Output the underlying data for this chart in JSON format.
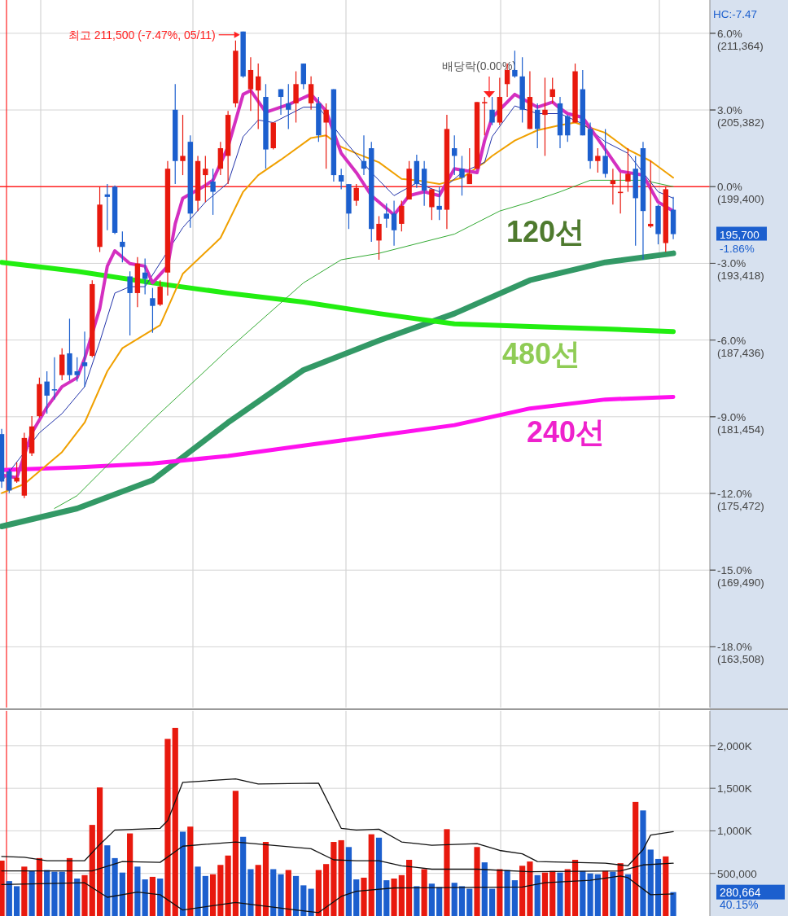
{
  "chart_data": [
    {
      "type": "candlestick",
      "categories": [
        null,
        null,
        null,
        null,
        null,
        null,
        null,
        null,
        null,
        null,
        null,
        null,
        null,
        null,
        null,
        null,
        null,
        null,
        null,
        null,
        null,
        null,
        null,
        null,
        null,
        null,
        null,
        null,
        null,
        null,
        null,
        null,
        null,
        null,
        null,
        null,
        null,
        null,
        null,
        null,
        null,
        null,
        null,
        null,
        null,
        null,
        null,
        null,
        null,
        null,
        null,
        null,
        null,
        null,
        null,
        null,
        null,
        null,
        null,
        null,
        null,
        null,
        null,
        null,
        null,
        null,
        null,
        null,
        null,
        null,
        null,
        null,
        null,
        null,
        null,
        null,
        null,
        null,
        null,
        null,
        null,
        null,
        null,
        null,
        null,
        null,
        null,
        null,
        null,
        null
      ],
      "ohlc": [
        [
          180100,
          180500,
          175900,
          176400
        ],
        [
          177200,
          177400,
          175500,
          175700
        ],
        [
          176400,
          177900,
          176300,
          176700
        ],
        [
          175300,
          180200,
          175100,
          179800
        ],
        [
          178600,
          181500,
          178400,
          180700
        ],
        [
          181500,
          184500,
          181400,
          184000
        ],
        [
          184200,
          185000,
          181700,
          183100
        ],
        [
          183600,
          186100,
          182800,
          183500
        ],
        [
          184700,
          186800,
          184300,
          186300
        ],
        [
          186400,
          189100,
          184300,
          184700
        ],
        [
          185000,
          186100,
          184200,
          184700
        ],
        [
          185700,
          188100,
          183800,
          185400
        ],
        [
          186200,
          192100,
          186100,
          191800
        ],
        [
          194700,
          199400,
          194300,
          198000
        ],
        [
          198800,
          199600,
          196000,
          198600
        ],
        [
          199400,
          199500,
          195700,
          195800
        ],
        [
          195100,
          195900,
          193500,
          194700
        ],
        [
          192400,
          192800,
          187800,
          191100
        ],
        [
          191100,
          193900,
          190000,
          193400
        ],
        [
          192700,
          193800,
          191000,
          192200
        ],
        [
          190700,
          191500,
          188000,
          190100
        ],
        [
          190200,
          192100,
          190100,
          191600
        ],
        [
          192700,
          201400,
          190900,
          200800
        ],
        [
          205400,
          207400,
          199600,
          201400
        ],
        [
          201400,
          205000,
          200300,
          201800
        ],
        [
          202900,
          203400,
          196200,
          197300
        ],
        [
          198300,
          201800,
          197500,
          201400
        ],
        [
          200300,
          201800,
          198200,
          200800
        ],
        [
          199800,
          200800,
          197200,
          199000
        ],
        [
          200800,
          202900,
          200300,
          202400
        ],
        [
          201800,
          205300,
          199600,
          205000
        ],
        [
          205900,
          210800,
          205600,
          210000
        ],
        [
          211500,
          211500,
          207900,
          208000
        ],
        [
          207000,
          209500,
          205300,
          208500
        ],
        [
          206900,
          209000,
          203900,
          208000
        ],
        [
          206400,
          207400,
          200800,
          202300
        ],
        [
          202400,
          204400,
          202300,
          204400
        ],
        [
          207000,
          207000,
          205000,
          206400
        ],
        [
          205900,
          207400,
          203900,
          205400
        ],
        [
          205900,
          208400,
          204400,
          207400
        ],
        [
          209000,
          209000,
          207000,
          207400
        ],
        [
          205900,
          208000,
          205400,
          207400
        ],
        [
          205900,
          206400,
          202900,
          203400
        ],
        [
          204400,
          205900,
          200800,
          205400
        ],
        [
          207000,
          207000,
          199800,
          200300
        ],
        [
          200300,
          200800,
          199200,
          199800
        ],
        [
          199600,
          199600,
          196100,
          197300
        ],
        [
          198300,
          199600,
          197900,
          199300
        ],
        [
          201400,
          203400,
          200300,
          200800
        ],
        [
          202400,
          202900,
          195100,
          196100
        ],
        [
          195200,
          197100,
          193700,
          196500
        ],
        [
          197300,
          198100,
          196200,
          196900
        ],
        [
          197300,
          198300,
          194800,
          196000
        ],
        [
          196500,
          198300,
          195900,
          197900
        ],
        [
          198400,
          201400,
          198400,
          200800
        ],
        [
          201400,
          201900,
          199300,
          199600
        ],
        [
          200800,
          201400,
          197900,
          199100
        ],
        [
          197800,
          199200,
          196800,
          199200
        ],
        [
          197900,
          199400,
          196800,
          197600
        ],
        [
          197600,
          205000,
          196100,
          203900
        ],
        [
          202400,
          203400,
          200300,
          201800
        ],
        [
          200800,
          201800,
          198700,
          200100
        ],
        [
          199600,
          202400,
          199600,
          200400
        ],
        [
          200800,
          206000,
          200800,
          206000
        ],
        [
          205900,
          206400,
          203400,
          206000
        ],
        [
          205400,
          206400,
          204200,
          204400
        ],
        [
          204400,
          207900,
          204200,
          206400
        ],
        [
          207400,
          209000,
          206400,
          208500
        ],
        [
          208500,
          210000,
          207900,
          208000
        ],
        [
          208000,
          209500,
          204400,
          205400
        ],
        [
          203900,
          208400,
          203900,
          206400
        ],
        [
          205400,
          205900,
          202400,
          203900
        ],
        [
          205000,
          207900,
          201800,
          205400
        ],
        [
          206400,
          207900,
          205900,
          207000
        ],
        [
          205900,
          206400,
          202400,
          203400
        ],
        [
          204900,
          205000,
          202900,
          203400
        ],
        [
          204400,
          209000,
          204400,
          208400
        ],
        [
          207000,
          208500,
          203400,
          203400
        ],
        [
          203900,
          204400,
          200800,
          201400
        ],
        [
          201400,
          202400,
          200500,
          201800
        ],
        [
          201800,
          203900,
          200100,
          200400
        ],
        [
          199600,
          200800,
          198000,
          199900
        ],
        [
          198900,
          200500,
          197300,
          199000
        ],
        [
          199800,
          202400,
          199000,
          200400
        ],
        [
          200800,
          201800,
          194800,
          198500
        ],
        [
          202400,
          202900,
          193700,
          197500
        ],
        [
          196300,
          201400,
          196200,
          196500
        ],
        [
          197900,
          198000,
          194900,
          195700
        ],
        [
          195000,
          199400,
          194300,
          199200
        ],
        [
          197600,
          198600,
          195300,
          195700
        ]
      ],
      "series": [
        {
          "type": "line",
          "name": "120선",
          "color": "#339966",
          "values": [
            172900,
            null,
            null,
            null,
            null,
            null,
            null,
            null,
            null,
            null,
            174300,
            null,
            null,
            null,
            null,
            null,
            null,
            null,
            null,
            null,
            176500,
            null,
            null,
            null,
            null,
            null,
            null,
            null,
            null,
            null,
            181000,
            null,
            null,
            null,
            null,
            null,
            null,
            null,
            null,
            null,
            185100,
            null,
            null,
            null,
            null,
            null,
            null,
            null,
            null,
            null,
            187400,
            null,
            null,
            null,
            null,
            null,
            null,
            null,
            null,
            null,
            189500,
            null,
            null,
            null,
            null,
            null,
            null,
            null,
            null,
            null,
            192100,
            null,
            null,
            null,
            null,
            null,
            null,
            null,
            null,
            null,
            193500,
            null,
            null,
            null,
            null,
            null,
            null,
            null,
            null,
            194200
          ]
        },
        {
          "type": "line",
          "name": "480선",
          "color": "#22ee11",
          "values": [
            193500,
            null,
            null,
            null,
            null,
            null,
            null,
            null,
            null,
            null,
            192800,
            null,
            null,
            null,
            null,
            null,
            null,
            null,
            null,
            null,
            191900,
            null,
            null,
            null,
            null,
            null,
            null,
            null,
            null,
            null,
            191100,
            null,
            null,
            null,
            null,
            null,
            null,
            null,
            null,
            null,
            190400,
            null,
            null,
            null,
            null,
            null,
            null,
            null,
            null,
            null,
            189500,
            null,
            null,
            null,
            null,
            null,
            null,
            null,
            null,
            null,
            188700,
            null,
            null,
            null,
            null,
            null,
            null,
            null,
            null,
            null,
            188500,
            null,
            null,
            null,
            null,
            null,
            null,
            null,
            null,
            null,
            188300,
            null,
            null,
            null,
            null,
            null,
            null,
            null,
            null,
            188100
          ]
        },
        {
          "type": "line",
          "name": "240선",
          "color": "#ff11ee",
          "values": [
            177300,
            null,
            null,
            null,
            null,
            null,
            null,
            null,
            null,
            null,
            177500,
            null,
            null,
            null,
            null,
            null,
            null,
            null,
            null,
            null,
            177800,
            null,
            null,
            null,
            null,
            null,
            null,
            null,
            null,
            null,
            178400,
            null,
            null,
            null,
            null,
            null,
            null,
            null,
            null,
            null,
            179200,
            null,
            null,
            null,
            null,
            null,
            null,
            null,
            null,
            null,
            180000,
            null,
            null,
            null,
            null,
            null,
            null,
            null,
            null,
            null,
            180800,
            null,
            null,
            null,
            null,
            null,
            null,
            null,
            null,
            null,
            182100,
            null,
            null,
            null,
            null,
            null,
            null,
            null,
            null,
            null,
            182800,
            null,
            null,
            null,
            null,
            null,
            null,
            null,
            null,
            183000
          ]
        },
        {
          "type": "line",
          "color": "#33aa33",
          "values": [
            null,
            null,
            null,
            null,
            null,
            null,
            null,
            174300,
            null,
            null,
            175300,
            null,
            null,
            null,
            null,
            null,
            null,
            null,
            null,
            null,
            181200,
            null,
            null,
            null,
            null,
            null,
            null,
            null,
            null,
            null,
            186700,
            null,
            null,
            null,
            null,
            null,
            null,
            null,
            null,
            null,
            191900,
            null,
            null,
            null,
            null,
            193700,
            null,
            null,
            null,
            null,
            194200,
            null,
            null,
            null,
            null,
            null,
            null,
            null,
            null,
            null,
            195700,
            null,
            null,
            null,
            null,
            null,
            197500,
            null,
            null,
            null,
            198200,
            null,
            null,
            null,
            199000,
            null,
            null,
            null,
            199900,
            null,
            null,
            null,
            null,
            null,
            null,
            199900,
            null,
            null,
            null,
            199400
          ]
        },
        {
          "type": "line",
          "color": "#f0a000",
          "values": [
            175500,
            null,
            null,
            176200,
            null,
            null,
            null,
            null,
            178700,
            null,
            null,
            181000,
            null,
            null,
            185000,
            null,
            186800,
            null,
            null,
            null,
            null,
            188600,
            null,
            null,
            192600,
            null,
            null,
            null,
            null,
            195400,
            null,
            null,
            199000,
            null,
            200300,
            null,
            null,
            201500,
            null,
            null,
            null,
            203200,
            null,
            203400,
            null,
            202500,
            null,
            202000,
            null,
            null,
            201300,
            null,
            null,
            200000,
            null,
            199900,
            null,
            null,
            199600,
            null,
            null,
            200100,
            null,
            null,
            201300,
            201800,
            null,
            null,
            203000,
            null,
            null,
            203800,
            null,
            null,
            204200,
            null,
            204400,
            null,
            null,
            null,
            203600,
            null,
            null,
            202300,
            null,
            null,
            201400,
            null,
            null,
            200100
          ]
        },
        {
          "type": "line",
          "color": "#2233aa",
          "values": [
            176400,
            null,
            null,
            null,
            null,
            180200,
            null,
            null,
            181700,
            null,
            null,
            183800,
            null,
            187300,
            null,
            191100,
            null,
            191600,
            null,
            191600,
            null,
            null,
            null,
            null,
            196200,
            null,
            null,
            198200,
            null,
            null,
            199700,
            null,
            203300,
            null,
            204600,
            null,
            204400,
            null,
            null,
            null,
            205600,
            null,
            205600,
            null,
            null,
            203300,
            null,
            null,
            null,
            200500,
            null,
            null,
            198700,
            null,
            null,
            199700,
            null,
            null,
            199000,
            null,
            null,
            200500,
            null,
            null,
            201300,
            203300,
            null,
            null,
            205700,
            null,
            null,
            205100,
            null,
            null,
            205100,
            null,
            null,
            204300,
            null,
            null,
            202900,
            null,
            null,
            202000,
            null,
            null,
            null,
            199000,
            null,
            198500
          ]
        },
        {
          "type": "line",
          "color": "#d42fc0",
          "values": [
            176900,
            null,
            176700,
            null,
            180200,
            null,
            182200,
            null,
            183800,
            null,
            184500,
            186000,
            null,
            189900,
            193200,
            194400,
            null,
            193400,
            null,
            193200,
            191900,
            null,
            193200,
            196500,
            198500,
            null,
            null,
            199500,
            199900,
            null,
            202500,
            null,
            206600,
            206900,
            null,
            205200,
            null,
            null,
            205800,
            null,
            null,
            206600,
            null,
            205300,
            null,
            202000,
            null,
            200500,
            null,
            198700,
            null,
            null,
            197200,
            null,
            198700,
            null,
            199000,
            null,
            198700,
            null,
            200800,
            null,
            null,
            200500,
            203000,
            204800,
            null,
            null,
            206600,
            null,
            null,
            205600,
            null,
            206000,
            205500,
            205100,
            null,
            204800,
            null,
            null,
            202300,
            null,
            200600,
            null,
            null,
            200300,
            null,
            198200,
            null,
            197500
          ]
        }
      ],
      "ylim": [
        158770,
        213960
      ],
      "yticks": [
        {
          "value": 211364,
          "label": "(211,364)"
        },
        {
          "value": 205382,
          "label": "(205,382)"
        },
        {
          "value": 199400,
          "label": "(199,400)"
        },
        {
          "value": 193418,
          "label": "(193,418)"
        },
        {
          "value": 187436,
          "label": "(187,436)"
        },
        {
          "value": 181454,
          "label": "(181,454)"
        },
        {
          "value": 175472,
          "label": "(175,472)"
        },
        {
          "value": 169490,
          "label": "(169,490)"
        },
        {
          "value": 163508,
          "label": "(163,508)"
        }
      ],
      "y2lim": [
        -20.376,
        7.302
      ],
      "y2ticks": [
        {
          "value": 6,
          "label": "6.0%"
        },
        {
          "value": 3,
          "label": "3.0%"
        },
        {
          "value": 0,
          "label": "0.0%"
        },
        {
          "value": -3,
          "label": "-3.0%"
        },
        {
          "value": -6,
          "label": "-6.0%"
        },
        {
          "value": -9,
          "label": "-9.0%"
        },
        {
          "value": -12,
          "label": "-12.0%"
        },
        {
          "value": -15,
          "label": "-15.0%"
        },
        {
          "value": -18,
          "label": "-18.0%"
        }
      ],
      "grid": "y",
      "ref_lines": [
        {
          "axis": "y",
          "value": 199400,
          "color": "#ff2020"
        }
      ],
      "annotations": [
        "최고 211,500 (-7.47%, 05/11)",
        "배당락(0.00%)",
        "195,700",
        "-1.86%",
        "HC:-7.47"
      ]
    },
    {
      "type": "bar",
      "categories": [
        null,
        null,
        null,
        null,
        null,
        null,
        null,
        null,
        null,
        null,
        null,
        null,
        null,
        null,
        null,
        null,
        null,
        null,
        null,
        null,
        null,
        null,
        null,
        null,
        null,
        null,
        null,
        null,
        null,
        null,
        null,
        null,
        null,
        null,
        null,
        null,
        null,
        null,
        null,
        null,
        null,
        null,
        null,
        null,
        null,
        null,
        null,
        null,
        null,
        null,
        null,
        null,
        null,
        null,
        null,
        null,
        null,
        null,
        null,
        null,
        null,
        null,
        null,
        null,
        null,
        null,
        null,
        null,
        null,
        null,
        null,
        null,
        null,
        null,
        null,
        null,
        null,
        null,
        null,
        null,
        null,
        null,
        null,
        null,
        null,
        null,
        null,
        null,
        null,
        null
      ],
      "series": [
        {
          "values": [
            650000,
            410000,
            350000,
            580000,
            530000,
            680000,
            540000,
            520000,
            520000,
            680000,
            440000,
            480000,
            1070000,
            1510000,
            830000,
            680000,
            510000,
            970000,
            580000,
            430000,
            460000,
            440000,
            2080000,
            2210000,
            990000,
            1050000,
            580000,
            470000,
            490000,
            600000,
            710000,
            1470000,
            930000,
            550000,
            600000,
            870000,
            550000,
            490000,
            540000,
            470000,
            360000,
            320000,
            540000,
            610000,
            870000,
            890000,
            810000,
            430000,
            450000,
            960000,
            920000,
            420000,
            440000,
            480000,
            660000,
            350000,
            550000,
            380000,
            340000,
            1020000,
            390000,
            350000,
            320000,
            810000,
            630000,
            320000,
            550000,
            540000,
            420000,
            590000,
            640000,
            480000,
            510000,
            530000,
            510000,
            550000,
            660000,
            530000,
            500000,
            490000,
            530000,
            520000,
            620000,
            490000,
            1340000,
            1240000,
            780000,
            670000,
            700000,
            280664
          ],
          "colors": [
            "#e8190e",
            "#1c5fce",
            "#1c5fce",
            "#e8190e",
            "#1c5fce",
            "#e8190e",
            "#1c5fce",
            "#1c5fce",
            "#1c5fce",
            "#e8190e",
            "#1c5fce",
            "#e8190e",
            "#e8190e",
            "#e8190e",
            "#1c5fce",
            "#1c5fce",
            "#1c5fce",
            "#e8190e",
            "#1c5fce",
            "#1c5fce",
            "#e8190e",
            "#1c5fce",
            "#e8190e",
            "#e8190e",
            "#1c5fce",
            "#e8190e",
            "#1c5fce",
            "#1c5fce",
            "#e8190e",
            "#e8190e",
            "#e8190e",
            "#e8190e",
            "#1c5fce",
            "#1c5fce",
            "#e8190e",
            "#e8190e",
            "#1c5fce",
            "#1c5fce",
            "#e8190e",
            "#1c5fce",
            "#1c5fce",
            "#1c5fce",
            "#e8190e",
            "#e8190e",
            "#e8190e",
            "#e8190e",
            "#1c5fce",
            "#1c5fce",
            "#e8190e",
            "#e8190e",
            "#1c5fce",
            "#1c5fce",
            "#e8190e",
            "#e8190e",
            "#e8190e",
            "#1c5fce",
            "#e8190e",
            "#1c5fce",
            "#1c5fce",
            "#e8190e",
            "#1c5fce",
            "#1c5fce",
            "#1c5fce",
            "#e8190e",
            "#1c5fce",
            "#1c5fce",
            "#e8190e",
            "#1c5fce",
            "#1c5fce",
            "#e8190e",
            "#e8190e",
            "#1c5fce",
            "#e8190e",
            "#e8190e",
            "#1c5fce",
            "#e8190e",
            "#e8190e",
            "#1c5fce",
            "#1c5fce",
            "#1c5fce",
            "#e8190e",
            "#1c5fce",
            "#e8190e",
            "#1c5fce",
            "#e8190e",
            "#1c5fce",
            "#1c5fce",
            "#1c5fce",
            "#e8190e",
            "#1c5fce"
          ]
        },
        {
          "type": "line",
          "color": "#111111",
          "values": [
            700000,
            null,
            null,
            690000,
            null,
            null,
            650000,
            null,
            null,
            null,
            null,
            650000,
            null,
            840000,
            null,
            1010000,
            null,
            null,
            null,
            null,
            null,
            1030000,
            1120000,
            null,
            1570000,
            null,
            null,
            null,
            null,
            null,
            null,
            1610000,
            null,
            null,
            1550000,
            null,
            null,
            null,
            null,
            null,
            null,
            null,
            1560000,
            null,
            null,
            1030000,
            null,
            1010000,
            null,
            null,
            1020000,
            null,
            null,
            870000,
            null,
            null,
            null,
            830000,
            null,
            null,
            null,
            null,
            null,
            850000,
            null,
            null,
            770000,
            null,
            null,
            730000,
            null,
            640000,
            null,
            null,
            null,
            null,
            null,
            null,
            null,
            null,
            620000,
            null,
            null,
            590000,
            null,
            780000,
            950000,
            null,
            null,
            990000
          ]
        },
        {
          "type": "line",
          "color": "#111111",
          "values": [
            530000,
            null,
            null,
            null,
            null,
            null,
            null,
            null,
            null,
            null,
            null,
            null,
            530000,
            null,
            null,
            null,
            640000,
            null,
            null,
            null,
            null,
            630000,
            null,
            null,
            820000,
            null,
            null,
            null,
            null,
            null,
            null,
            870000,
            null,
            null,
            null,
            null,
            null,
            null,
            null,
            null,
            null,
            790000,
            null,
            null,
            660000,
            null,
            null,
            650000,
            null,
            null,
            650000,
            null,
            null,
            590000,
            null,
            null,
            null,
            550000,
            null,
            null,
            null,
            null,
            null,
            550000,
            null,
            null,
            null,
            null,
            null,
            null,
            520000,
            null,
            null,
            null,
            null,
            null,
            null,
            null,
            null,
            null,
            null,
            null,
            530000,
            null,
            null,
            600000,
            null,
            null,
            null,
            620000
          ]
        },
        {
          "type": "line",
          "color": "#111111",
          "values": [
            370000,
            null,
            null,
            null,
            null,
            null,
            null,
            null,
            null,
            null,
            null,
            390000,
            null,
            null,
            220000,
            null,
            null,
            null,
            280000,
            null,
            null,
            250000,
            null,
            null,
            70000,
            null,
            null,
            null,
            null,
            null,
            null,
            160000,
            null,
            null,
            null,
            null,
            null,
            null,
            null,
            70000,
            null,
            null,
            40000,
            null,
            null,
            230000,
            null,
            290000,
            null,
            null,
            null,
            null,
            330000,
            null,
            null,
            null,
            null,
            null,
            null,
            null,
            null,
            null,
            null,
            null,
            null,
            null,
            null,
            null,
            null,
            340000,
            null,
            null,
            390000,
            null,
            null,
            null,
            null,
            null,
            420000,
            null,
            null,
            null,
            470000,
            450000,
            null,
            null,
            250000,
            null,
            null,
            260000
          ]
        }
      ],
      "ylim": [
        0,
        2410000
      ],
      "yticks": [
        {
          "value": 2000000,
          "label": "2,000K"
        },
        {
          "value": 1500000,
          "label": "1,500K"
        },
        {
          "value": 1000000,
          "label": "1,000K"
        },
        {
          "value": 500000,
          "label": "500,000"
        }
      ],
      "grid": "y",
      "annotations": [
        "280,664",
        "40.15%"
      ]
    }
  ]
}
